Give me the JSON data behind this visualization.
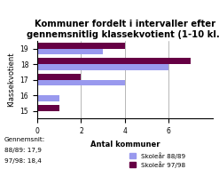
{
  "title": "Kommuner fordelt i intervaller efter\ngennemsnitlig klassekvotient (1-10 kl.)",
  "categories": [
    19,
    18,
    17,
    16,
    15
  ],
  "values_8889": [
    3,
    6,
    4,
    1,
    0
  ],
  "values_9798": [
    4,
    7,
    2,
    0,
    1
  ],
  "color_8889": "#9999ee",
  "color_9798": "#660044",
  "xlabel": "Antal kommuner",
  "ylabel": "Klassekvotient",
  "xlim": [
    0,
    8
  ],
  "xticks": [
    0,
    2,
    4,
    6
  ],
  "legend_8889": "Skoleår 88/89",
  "legend_9798": "Skoleår 97/98",
  "note_line1": "Gennemsnit:",
  "note_line2": "88/89: 17,9",
  "note_line3": "97/98: 18,4",
  "bar_height": 0.38,
  "title_fontsize": 7.2,
  "axis_fontsize": 6,
  "tick_fontsize": 5.5,
  "note_fontsize": 5.2
}
